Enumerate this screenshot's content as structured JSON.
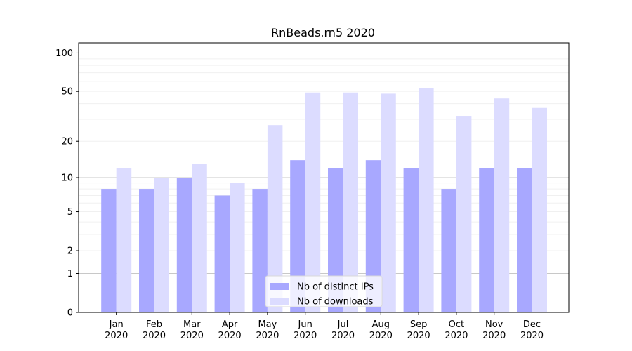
{
  "chart_data": {
    "type": "bar",
    "title": "RnBeads.rn5 2020",
    "xlabel": "",
    "ylabel": "",
    "y_scale": "log(1+y)",
    "ylim": [
      0,
      120
    ],
    "y_ticks": [
      "0",
      "1",
      "2",
      "5",
      "10",
      "20",
      "50",
      "100"
    ],
    "categories": [
      "Jan",
      "Feb",
      "Mar",
      "Apr",
      "May",
      "Jun",
      "Jul",
      "Aug",
      "Sep",
      "Oct",
      "Nov",
      "Dec"
    ],
    "category_years": [
      "2020",
      "2020",
      "2020",
      "2020",
      "2020",
      "2020",
      "2020",
      "2020",
      "2020",
      "2020",
      "2020",
      "2020"
    ],
    "series": [
      {
        "name": "Nb of distinct IPs",
        "color": "#a8a8ff",
        "values": [
          8,
          8,
          10,
          7,
          8,
          14,
          12,
          14,
          12,
          8,
          12,
          12
        ]
      },
      {
        "name": "Nb of downloads",
        "color": "#dcdcff",
        "values": [
          12,
          10,
          13,
          9,
          27,
          49,
          49,
          48,
          53,
          32,
          44,
          37
        ]
      }
    ],
    "legend": {
      "position": "bottom-center"
    },
    "grid": true
  }
}
